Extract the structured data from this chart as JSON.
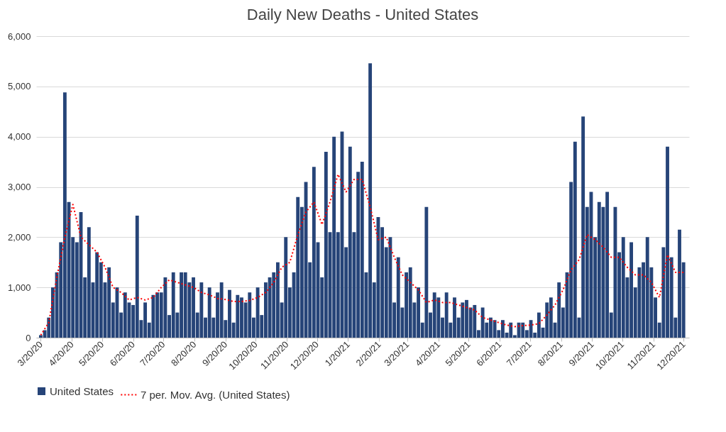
{
  "chart_data": {
    "type": "bar",
    "title": "Daily New Deaths - United States",
    "legend": "bottom",
    "grid": "y",
    "x": [
      "2020-03-20",
      "2020-03-24",
      "2020-03-28",
      "2020-04-01",
      "2020-04-05",
      "2020-04-09",
      "2020-04-13",
      "2020-04-17",
      "2020-04-21",
      "2020-04-25",
      "2020-04-29",
      "2020-05-03",
      "2020-05-07",
      "2020-05-11",
      "2020-05-15",
      "2020-05-19",
      "2020-05-23",
      "2020-05-27",
      "2020-05-31",
      "2020-06-04",
      "2020-06-08",
      "2020-06-12",
      "2020-06-16",
      "2020-06-20",
      "2020-06-24",
      "2020-06-28",
      "2020-07-02",
      "2020-07-06",
      "2020-07-10",
      "2020-07-14",
      "2020-07-18",
      "2020-07-22",
      "2020-07-26",
      "2020-07-30",
      "2020-08-03",
      "2020-08-07",
      "2020-08-11",
      "2020-08-15",
      "2020-08-19",
      "2020-08-23",
      "2020-08-27",
      "2020-08-31",
      "2020-09-04",
      "2020-09-08",
      "2020-09-12",
      "2020-09-16",
      "2020-09-20",
      "2020-09-24",
      "2020-09-28",
      "2020-10-02",
      "2020-10-06",
      "2020-10-10",
      "2020-10-14",
      "2020-10-18",
      "2020-10-22",
      "2020-10-26",
      "2020-10-30",
      "2020-11-03",
      "2020-11-07",
      "2020-11-11",
      "2020-11-15",
      "2020-11-19",
      "2020-11-23",
      "2020-11-27",
      "2020-12-01",
      "2020-12-05",
      "2020-12-09",
      "2020-12-13",
      "2020-12-17",
      "2020-12-21",
      "2020-12-25",
      "2020-12-29",
      "2021-01-02",
      "2021-01-06",
      "2021-01-10",
      "2021-01-14",
      "2021-01-18",
      "2021-01-22",
      "2021-01-26",
      "2021-01-30",
      "2021-02-03",
      "2021-02-07",
      "2021-02-11",
      "2021-02-15",
      "2021-02-19",
      "2021-02-23",
      "2021-02-27",
      "2021-03-03",
      "2021-03-07",
      "2021-03-11",
      "2021-03-15",
      "2021-03-19",
      "2021-03-23",
      "2021-03-27",
      "2021-03-31",
      "2021-04-04",
      "2021-04-08",
      "2021-04-12",
      "2021-04-16",
      "2021-04-20",
      "2021-04-24",
      "2021-04-28",
      "2021-05-02",
      "2021-05-06",
      "2021-05-10",
      "2021-05-14",
      "2021-05-18",
      "2021-05-22",
      "2021-05-26",
      "2021-05-30",
      "2021-06-03",
      "2021-06-07",
      "2021-06-11",
      "2021-06-15",
      "2021-06-19",
      "2021-06-23",
      "2021-06-27",
      "2021-07-01",
      "2021-07-05",
      "2021-07-09",
      "2021-07-13",
      "2021-07-17",
      "2021-07-21",
      "2021-07-25",
      "2021-07-29",
      "2021-08-02",
      "2021-08-06",
      "2021-08-10",
      "2021-08-14",
      "2021-08-18",
      "2021-08-22",
      "2021-08-26",
      "2021-08-30",
      "2021-09-03",
      "2021-09-07",
      "2021-09-11",
      "2021-09-15",
      "2021-09-19",
      "2021-09-23",
      "2021-09-27",
      "2021-10-01",
      "2021-10-05",
      "2021-10-09",
      "2021-10-13",
      "2021-10-17",
      "2021-10-21",
      "2021-10-25",
      "2021-10-29",
      "2021-11-02",
      "2021-11-06",
      "2021-11-10",
      "2021-11-14",
      "2021-11-18",
      "2021-11-22",
      "2021-11-26",
      "2021-11-30",
      "2021-12-04",
      "2021-12-08",
      "2021-12-12",
      "2021-12-16",
      "2021-12-20"
    ],
    "series": [
      {
        "name": "United States",
        "color": "#264478",
        "values": [
          50,
          150,
          400,
          1000,
          1300,
          1900,
          4880,
          2700,
          2000,
          1900,
          2500,
          1200,
          2200,
          1100,
          1700,
          1500,
          1100,
          1400,
          700,
          1000,
          500,
          900,
          700,
          650,
          2430,
          350,
          700,
          300,
          850,
          900,
          900,
          1200,
          450,
          1300,
          500,
          1300,
          1300,
          1100,
          1200,
          500,
          1100,
          400,
          1000,
          400,
          900,
          1100,
          350,
          950,
          300,
          850,
          800,
          700,
          900,
          400,
          1000,
          450,
          1100,
          1200,
          1300,
          1500,
          700,
          2000,
          1000,
          1300,
          2800,
          2600,
          3100,
          1500,
          3400,
          1900,
          1200,
          3700,
          2100,
          4000,
          2100,
          4100,
          1800,
          3800,
          2100,
          3300,
          3500,
          1300,
          5460,
          1100,
          2400,
          2200,
          1800,
          2000,
          700,
          1600,
          600,
          1300,
          1400,
          700,
          1000,
          300,
          2600,
          500,
          900,
          800,
          400,
          900,
          300,
          800,
          400,
          700,
          750,
          600,
          650,
          150,
          600,
          300,
          400,
          350,
          150,
          350,
          100,
          300,
          50,
          300,
          300,
          150,
          350,
          100,
          500,
          200,
          700,
          800,
          300,
          1100,
          600,
          1300,
          3100,
          3900,
          400,
          4400,
          2600,
          2900,
          2000,
          2700,
          2600,
          2900,
          500,
          2600,
          1700,
          2000,
          1200,
          1900,
          1000,
          1400,
          1500,
          2000,
          1400,
          800,
          300,
          1800,
          3800,
          1600,
          400,
          2150,
          1500
        ]
      },
      {
        "name": "7 per. Mov. Avg. (United States)",
        "type": "line",
        "color": "#ff0000",
        "line_style": "dotted",
        "x": [
          "2020-03-20",
          "2020-03-28",
          "2020-04-05",
          "2020-04-13",
          "2020-04-21",
          "2020-04-29",
          "2020-05-07",
          "2020-05-15",
          "2020-05-23",
          "2020-05-31",
          "2020-06-08",
          "2020-06-16",
          "2020-06-24",
          "2020-07-02",
          "2020-07-10",
          "2020-07-18",
          "2020-07-26",
          "2020-08-03",
          "2020-08-11",
          "2020-08-19",
          "2020-08-27",
          "2020-09-04",
          "2020-09-12",
          "2020-09-20",
          "2020-09-28",
          "2020-10-06",
          "2020-10-14",
          "2020-10-22",
          "2020-10-30",
          "2020-11-07",
          "2020-11-15",
          "2020-11-23",
          "2020-12-01",
          "2020-12-09",
          "2020-12-17",
          "2020-12-25",
          "2021-01-02",
          "2021-01-10",
          "2021-01-18",
          "2021-01-26",
          "2021-02-03",
          "2021-02-11",
          "2021-02-19",
          "2021-02-27",
          "2021-03-07",
          "2021-03-15",
          "2021-03-23",
          "2021-03-31",
          "2021-04-08",
          "2021-04-16",
          "2021-04-24",
          "2021-05-02",
          "2021-05-10",
          "2021-05-18",
          "2021-05-26",
          "2021-06-03",
          "2021-06-11",
          "2021-06-19",
          "2021-06-27",
          "2021-07-05",
          "2021-07-13",
          "2021-07-21",
          "2021-07-29",
          "2021-08-06",
          "2021-08-14",
          "2021-08-22",
          "2021-08-30",
          "2021-09-07",
          "2021-09-15",
          "2021-09-23",
          "2021-10-01",
          "2021-10-09",
          "2021-10-17",
          "2021-10-25",
          "2021-11-02",
          "2021-11-10",
          "2021-11-18",
          "2021-11-26",
          "2021-12-04",
          "2021-12-12",
          "2021-12-20"
        ],
        "values": [
          50,
          300,
          1200,
          2000,
          2650,
          2000,
          1850,
          1700,
          1400,
          1000,
          900,
          750,
          800,
          750,
          800,
          1000,
          1150,
          1100,
          1050,
          1000,
          900,
          850,
          780,
          760,
          720,
          720,
          740,
          800,
          900,
          1100,
          1400,
          1500,
          2050,
          2500,
          2700,
          2250,
          2700,
          3250,
          2900,
          3150,
          3150,
          2600,
          1950,
          2000,
          1600,
          1250,
          1100,
          950,
          700,
          750,
          700,
          700,
          650,
          600,
          550,
          400,
          350,
          300,
          250,
          220,
          240,
          250,
          280,
          450,
          650,
          950,
          1350,
          1550,
          2050,
          1950,
          1800,
          1600,
          1600,
          1400,
          1250,
          1250,
          1100,
          800,
          1650,
          1300,
          1300
        ]
      }
    ],
    "xlim": [
      "2020-03-19",
      "2021-12-22"
    ],
    "xticks": [
      {
        "value": "2020-03-20",
        "label": "3/20/20"
      },
      {
        "value": "2020-04-20",
        "label": "4/20/20"
      },
      {
        "value": "2020-05-20",
        "label": "5/20/20"
      },
      {
        "value": "2020-06-20",
        "label": "6/20/20"
      },
      {
        "value": "2020-07-20",
        "label": "7/20/20"
      },
      {
        "value": "2020-08-20",
        "label": "8/20/20"
      },
      {
        "value": "2020-09-20",
        "label": "9/20/20"
      },
      {
        "value": "2020-10-20",
        "label": "10/20/20"
      },
      {
        "value": "2020-11-20",
        "label": "11/20/20"
      },
      {
        "value": "2020-12-20",
        "label": "12/20/20"
      },
      {
        "value": "2021-01-20",
        "label": "1/20/21"
      },
      {
        "value": "2021-02-20",
        "label": "2/20/21"
      },
      {
        "value": "2021-03-20",
        "label": "3/20/21"
      },
      {
        "value": "2021-04-20",
        "label": "4/20/21"
      },
      {
        "value": "2021-05-20",
        "label": "5/20/21"
      },
      {
        "value": "2021-06-20",
        "label": "6/20/21"
      },
      {
        "value": "2021-07-20",
        "label": "7/20/21"
      },
      {
        "value": "2021-08-20",
        "label": "8/20/21"
      },
      {
        "value": "2021-09-20",
        "label": "9/20/21"
      },
      {
        "value": "2021-10-20",
        "label": "10/20/21"
      },
      {
        "value": "2021-11-20",
        "label": "11/20/21"
      },
      {
        "value": "2021-12-20",
        "label": "12/20/21"
      }
    ],
    "ylim": [
      0,
      6000
    ],
    "yticks": [
      0,
      {
        "value": 1000,
        "label": "1,000"
      },
      {
        "value": 2000,
        "label": "2,000"
      },
      {
        "value": 3000,
        "label": "3,000"
      },
      {
        "value": 4000,
        "label": "4,000"
      },
      {
        "value": 5000,
        "label": "5,000"
      },
      {
        "value": 6000,
        "label": "6,000"
      }
    ]
  }
}
